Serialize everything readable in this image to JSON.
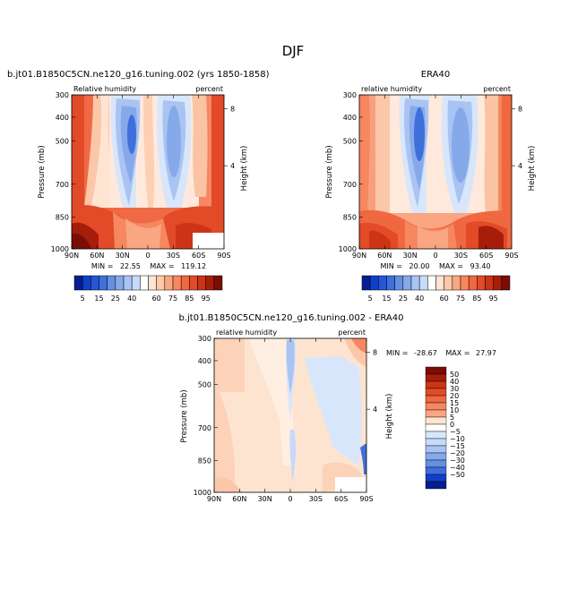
{
  "figure": {
    "title": "DJF",
    "colors": {
      "positive_ramp": [
        "#ffe4d0",
        "#fcc8a8",
        "#faa683",
        "#f68760",
        "#ef6840",
        "#e24a28",
        "#cc3415",
        "#a61d0a",
        "#7a0d05"
      ],
      "negative_ramp": [
        "#d8e6fb",
        "#c6daf9",
        "#a9c4f2",
        "#86a9ea",
        "#658fe2",
        "#3f6fdb",
        "#2456d6",
        "#113fc9",
        "#061e90"
      ],
      "neutral": "#ffffff"
    }
  },
  "chart_data": [
    {
      "type": "heatmap",
      "panel": "model",
      "title": "b.jt01.B1850C5CN.ne120_g16.tuning.002 (yrs 1850-1858)",
      "left_label": "Relative humidity",
      "right_label": "percent",
      "ylabel": "Pressure (mb)",
      "y2label": "Height (km)",
      "x_ticks": [
        "90N",
        "60N",
        "30N",
        "0",
        "30S",
        "60S",
        "90S"
      ],
      "y_ticks": [
        "300",
        "400",
        "500",
        "700",
        "850",
        "1000"
      ],
      "y2_ticks": [
        "8",
        "4"
      ],
      "stats": {
        "min_label": "MIN =",
        "min": "22.55",
        "max_label": "MAX =",
        "max": "119.12"
      },
      "levels": [
        5,
        10,
        15,
        20,
        25,
        30,
        40,
        50,
        60,
        70,
        75,
        80,
        85,
        90,
        95
      ]
    },
    {
      "type": "heatmap",
      "panel": "obs",
      "title": "ERA40",
      "left_label": "relative humidity",
      "right_label": "percent",
      "ylabel": "Pressure (mb)",
      "y2label": "Height (km)",
      "x_ticks": [
        "90N",
        "60N",
        "30N",
        "0",
        "30S",
        "60S",
        "90S"
      ],
      "y_ticks": [
        "300",
        "400",
        "500",
        "700",
        "850",
        "1000"
      ],
      "y2_ticks": [
        "8",
        "4"
      ],
      "stats": {
        "min_label": "MIN =",
        "min": "20.00",
        "max_label": "MAX =",
        "max": "93.40"
      },
      "levels": [
        5,
        10,
        15,
        20,
        25,
        30,
        40,
        50,
        60,
        70,
        75,
        80,
        85,
        90,
        95
      ]
    },
    {
      "type": "heatmap",
      "panel": "difference",
      "title": "b.jt01.B1850C5CN.ne120_g16.tuning.002 - ERA40",
      "left_label": "relative humidity",
      "right_label": "percent",
      "ylabel": "Pressure (mb)",
      "y2label": "Height (km)",
      "x_ticks": [
        "90N",
        "60N",
        "30N",
        "0",
        "30S",
        "60S",
        "90S"
      ],
      "y_ticks": [
        "300",
        "400",
        "500",
        "700",
        "850",
        "1000"
      ],
      "y2_ticks": [
        "8",
        "4"
      ],
      "stats": {
        "min_label": "MIN =",
        "min": "-28.67",
        "max_label": "MAX =",
        "max": "27.97"
      },
      "levels": [
        -50,
        -40,
        -30,
        -20,
        -15,
        -10,
        -5,
        0,
        5,
        10,
        15,
        20,
        30,
        40,
        50
      ]
    }
  ],
  "colorbar_main": {
    "labels": [
      "5",
      "15",
      "25",
      "40",
      "60",
      "75",
      "85",
      "95"
    ]
  },
  "colorbar_diff": {
    "labels": [
      "50",
      "40",
      "30",
      "20",
      "15",
      "10",
      "5",
      "0",
      "−5",
      "−10",
      "−15",
      "−20",
      "−30",
      "−40",
      "−50"
    ]
  }
}
